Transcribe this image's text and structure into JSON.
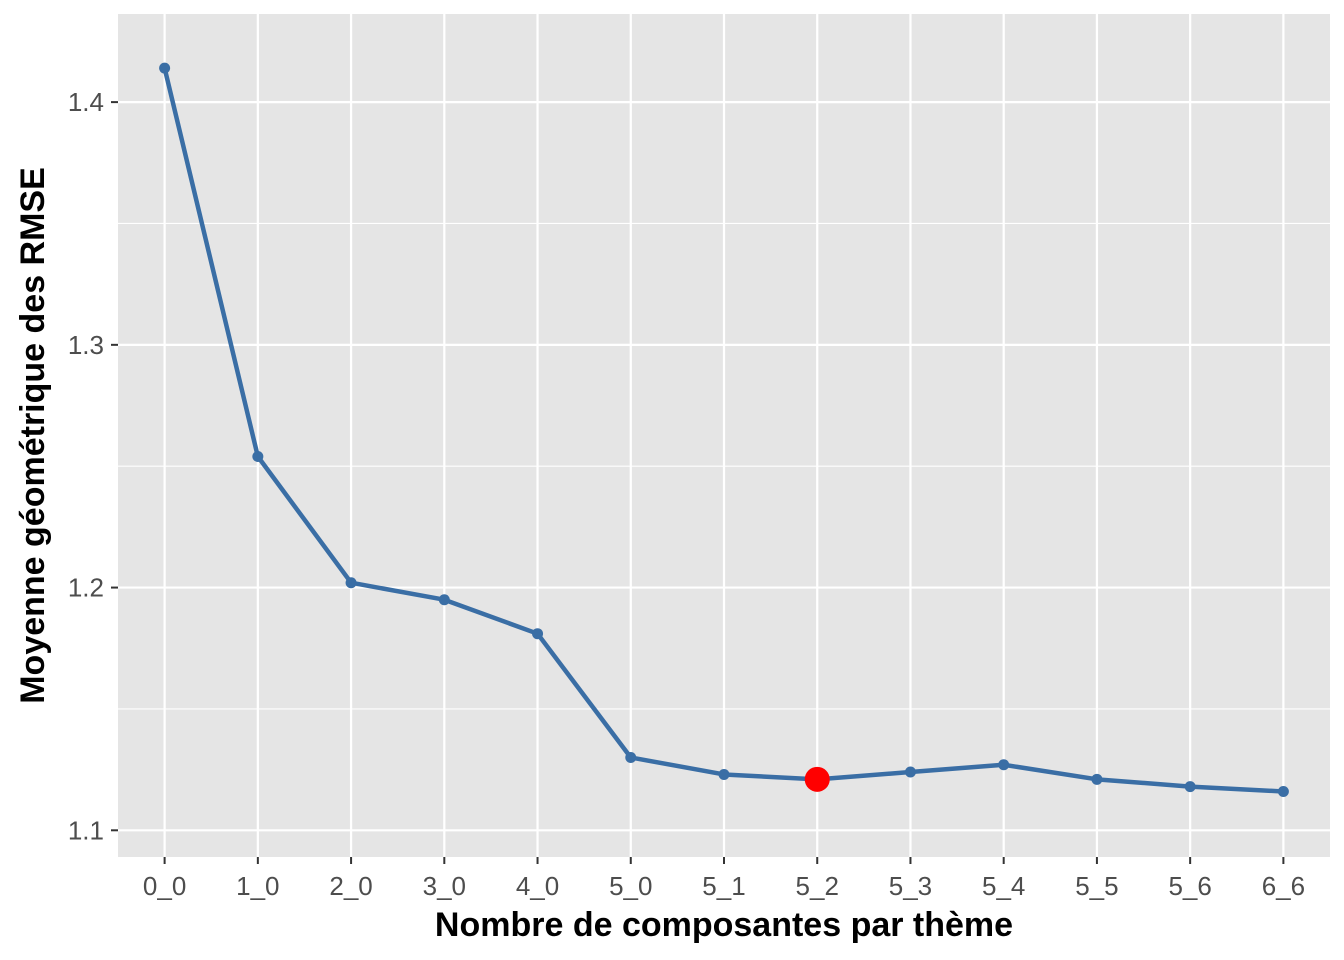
{
  "chart_data": {
    "type": "line",
    "title": "",
    "xlabel": "Nombre de composantes par thème",
    "ylabel": "Moyenne géométrique des RMSE",
    "categories": [
      "0_0",
      "1_0",
      "2_0",
      "3_0",
      "4_0",
      "5_0",
      "5_1",
      "5_2",
      "5_3",
      "5_4",
      "5_5",
      "5_6",
      "6_6"
    ],
    "series": [
      {
        "values": [
          1.414,
          1.254,
          1.202,
          1.195,
          1.181,
          1.13,
          1.123,
          1.121,
          1.124,
          1.127,
          1.121,
          1.118,
          1.116
        ],
        "color": "#3a6ea5"
      }
    ],
    "highlight": {
      "category": "5_2",
      "value": 1.121,
      "color": "#ff0000"
    },
    "ylim": [
      1.089,
      1.4363
    ],
    "yticks": [
      1.1,
      1.2,
      1.3,
      1.4
    ],
    "ytick_labels": [
      "1.1",
      "1.2",
      "1.3",
      "1.4"
    ],
    "grid": true,
    "panel_background": "#e5e5e5",
    "grid_color": "#ffffff",
    "legend": "none"
  }
}
